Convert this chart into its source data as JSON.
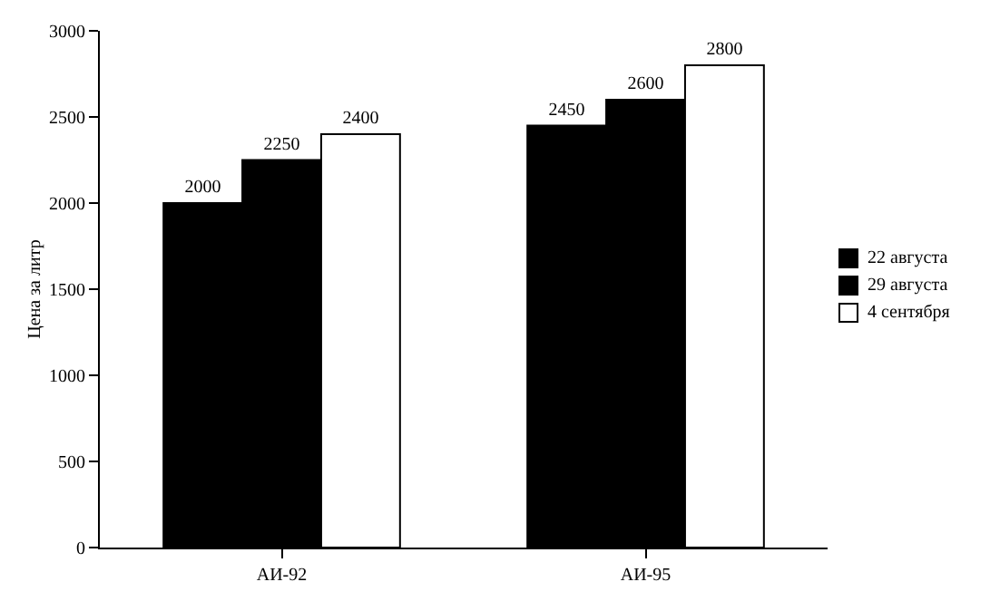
{
  "chart_data": {
    "type": "bar",
    "ylabel": "Цена за литр",
    "categories": [
      "АИ-92",
      "АИ-95"
    ],
    "series": [
      {
        "name": "22 августа",
        "color": "#000000",
        "values": [
          2000,
          2450
        ]
      },
      {
        "name": "29 августа",
        "color": "#000000",
        "values": [
          2250,
          2600
        ]
      },
      {
        "name": "4 сентября",
        "color": "#ffffff",
        "values": [
          2400,
          2800
        ]
      }
    ],
    "ylim": [
      0,
      3000
    ],
    "yticks": [
      0,
      500,
      1000,
      1500,
      2000,
      2500,
      3000
    ],
    "grid": false,
    "legend": "right",
    "data_labels": true
  }
}
